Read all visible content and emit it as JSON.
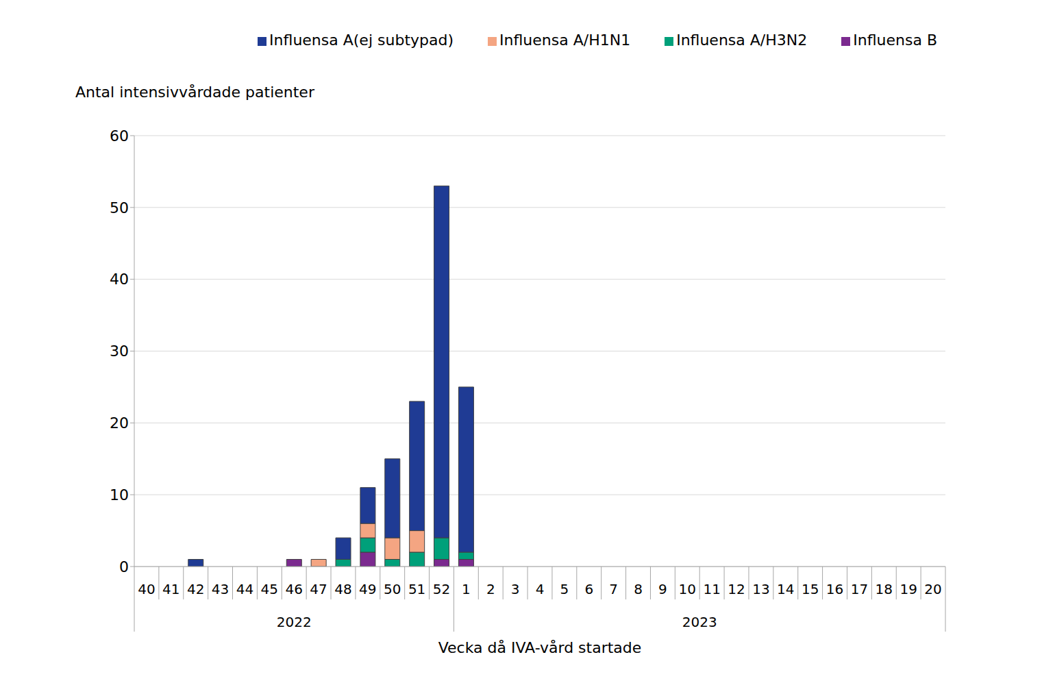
{
  "chart_data": {
    "type": "bar",
    "stacked": true,
    "grid": true,
    "legend": "upper right",
    "ylabel": "Antal intensivvårdade patienter",
    "xlabel": "Vecka då IVA-vård startade",
    "categories": [
      "40",
      "41",
      "42",
      "43",
      "44",
      "45",
      "46",
      "47",
      "48",
      "49",
      "50",
      "51",
      "52",
      "1",
      "2",
      "3",
      "4",
      "5",
      "6",
      "7",
      "8",
      "9",
      "10",
      "11",
      "12",
      "13",
      "14",
      "15",
      "16",
      "17",
      "18",
      "19",
      "20"
    ],
    "groups": [
      {
        "label": "2022",
        "count": 13
      },
      {
        "label": "2023",
        "count": 20
      }
    ],
    "series": [
      {
        "name": "Influensa B",
        "color": "#7b2a8f",
        "values": [
          0,
          0,
          0,
          0,
          0,
          0,
          1,
          0,
          0,
          2,
          0,
          0,
          1,
          1,
          0,
          0,
          0,
          0,
          0,
          0,
          0,
          0,
          0,
          0,
          0,
          0,
          0,
          0,
          0,
          0,
          0,
          0,
          0
        ]
      },
      {
        "name": "Influensa A/H3N2",
        "color": "#00a07a",
        "values": [
          0,
          0,
          0,
          0,
          0,
          0,
          0,
          0,
          1,
          2,
          1,
          2,
          3,
          1,
          0,
          0,
          0,
          0,
          0,
          0,
          0,
          0,
          0,
          0,
          0,
          0,
          0,
          0,
          0,
          0,
          0,
          0,
          0
        ]
      },
      {
        "name": "Influensa A/H1N1",
        "color": "#f4a582",
        "values": [
          0,
          0,
          0,
          0,
          0,
          0,
          0,
          1,
          0,
          2,
          3,
          3,
          0,
          0,
          0,
          0,
          0,
          0,
          0,
          0,
          0,
          0,
          0,
          0,
          0,
          0,
          0,
          0,
          0,
          0,
          0,
          0,
          0
        ]
      },
      {
        "name": "Influensa A(ej subtypad)",
        "color": "#1f3b94",
        "values": [
          0,
          0,
          1,
          0,
          0,
          0,
          0,
          0,
          3,
          5,
          11,
          18,
          49,
          23,
          0,
          0,
          0,
          0,
          0,
          0,
          0,
          0,
          0,
          0,
          0,
          0,
          0,
          0,
          0,
          0,
          0,
          0,
          0
        ]
      }
    ],
    "ylim": [
      0,
      60
    ],
    "yticks": [
      0,
      10,
      20,
      30,
      40,
      50,
      60
    ]
  }
}
